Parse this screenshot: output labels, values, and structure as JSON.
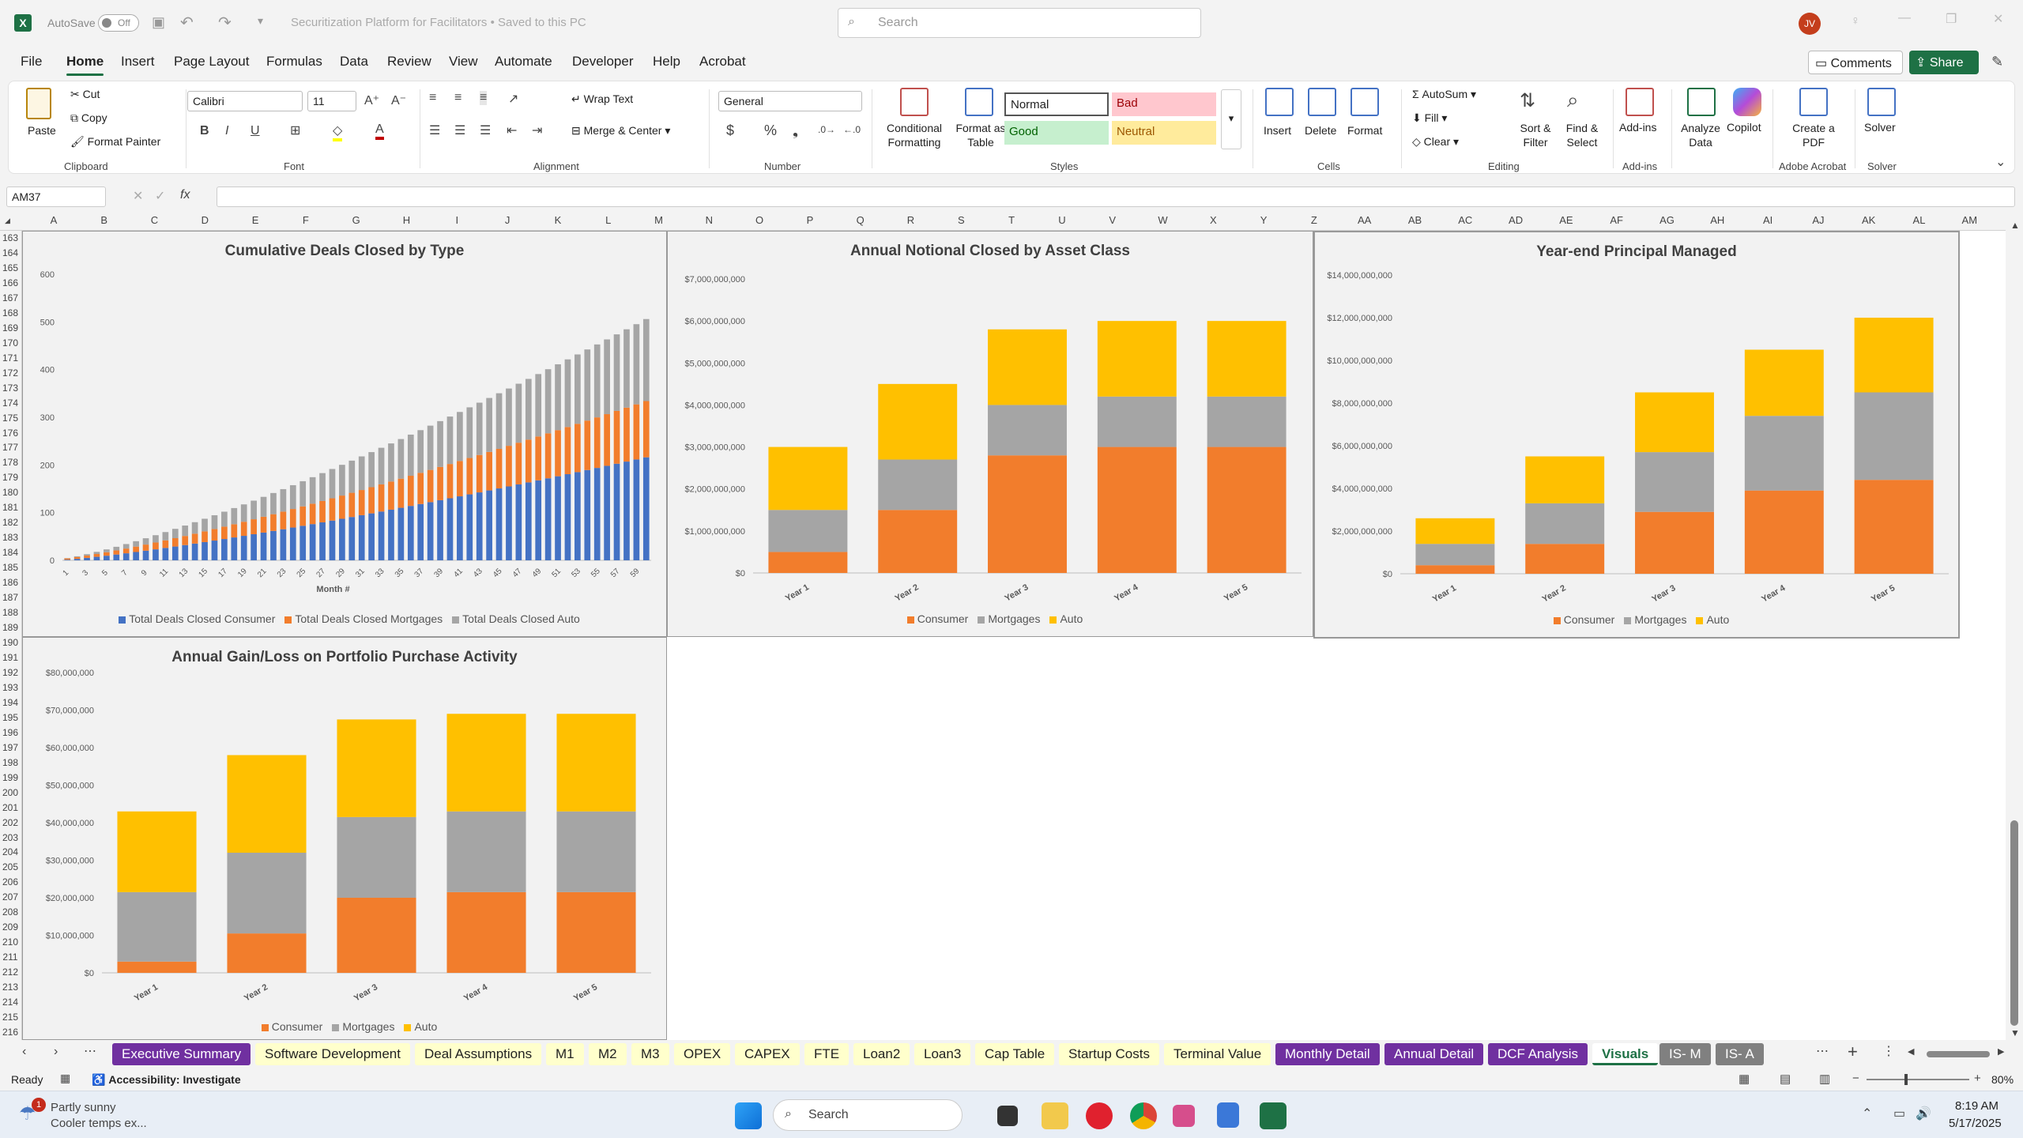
{
  "titlebar": {
    "autosave_label": "AutoSave",
    "autosave_state": "Off",
    "doc_title": "Securitization Platform for Facilitators • Saved to this PC",
    "search_placeholder": "Search",
    "user_initials": "JV"
  },
  "menu": [
    "File",
    "Home",
    "Insert",
    "Page Layout",
    "Formulas",
    "Data",
    "Review",
    "View",
    "Automate",
    "Developer",
    "Help",
    "Acrobat"
  ],
  "menu_active": "Home",
  "comments_label": "Comments",
  "share_label": "Share",
  "ribbon": {
    "clipboard": {
      "paste": "Paste",
      "cut": "Cut",
      "copy": "Copy",
      "format_painter": "Format Painter",
      "label": "Clipboard"
    },
    "font": {
      "name": "Calibri",
      "size": "11",
      "label": "Font"
    },
    "alignment": {
      "wrap": "Wrap Text",
      "merge": "Merge & Center",
      "label": "Alignment"
    },
    "number": {
      "format": "General",
      "label": "Number"
    },
    "styles": {
      "conditional": "Conditional Formatting",
      "format_table": "Format as Table",
      "normal": "Normal",
      "bad": "Bad",
      "good": "Good",
      "neutral": "Neutral",
      "label": "Styles"
    },
    "cells": {
      "insert": "Insert",
      "delete": "Delete",
      "format": "Format",
      "label": "Cells"
    },
    "editing": {
      "autosum": "AutoSum",
      "fill": "Fill",
      "clear": "Clear",
      "sort": "Sort & Filter",
      "find": "Find & Select",
      "label": "Editing"
    },
    "addins": {
      "addins": "Add-ins",
      "label": "Add-ins"
    },
    "analyze": "Analyze Data",
    "copilot": "Copilot",
    "acrobat": {
      "create": "Create a PDF",
      "label": "Adobe Acrobat"
    },
    "solver": {
      "solver": "Solver",
      "label": "Solver"
    }
  },
  "namebox": "AM37",
  "columns": [
    "A",
    "B",
    "C",
    "D",
    "E",
    "F",
    "G",
    "H",
    "I",
    "J",
    "K",
    "L",
    "M",
    "N",
    "O",
    "P",
    "Q",
    "R",
    "S",
    "T",
    "U",
    "V",
    "W",
    "X",
    "Y",
    "Z",
    "AA",
    "AB",
    "AC",
    "AD",
    "AE",
    "AF",
    "AG",
    "AH",
    "AI",
    "AJ",
    "AK",
    "AL",
    "AM"
  ],
  "row_start": 163,
  "row_end": 216,
  "sheet_tabs": [
    {
      "label": "Executive Summary",
      "color": "#7030a0",
      "text": "#ffffff"
    },
    {
      "label": "Software Development",
      "color": "#ffffcc",
      "text": "#222222"
    },
    {
      "label": "Deal Assumptions",
      "color": "#ffffcc",
      "text": "#222222"
    },
    {
      "label": "M1",
      "color": "#ffffcc",
      "text": "#222222"
    },
    {
      "label": "M2",
      "color": "#ffffcc",
      "text": "#222222"
    },
    {
      "label": "M3",
      "color": "#ffffcc",
      "text": "#222222"
    },
    {
      "label": "OPEX",
      "color": "#ffffcc",
      "text": "#222222"
    },
    {
      "label": "CAPEX",
      "color": "#ffffcc",
      "text": "#222222"
    },
    {
      "label": "FTE",
      "color": "#ffffcc",
      "text": "#222222"
    },
    {
      "label": "Loan2",
      "color": "#ffffcc",
      "text": "#222222"
    },
    {
      "label": "Loan3",
      "color": "#ffffcc",
      "text": "#222222"
    },
    {
      "label": "Cap Table",
      "color": "#ffffcc",
      "text": "#222222"
    },
    {
      "label": "Startup Costs",
      "color": "#ffffcc",
      "text": "#222222"
    },
    {
      "label": "Terminal Value",
      "color": "#ffffcc",
      "text": "#222222"
    },
    {
      "label": "Monthly Detail",
      "color": "#7030a0",
      "text": "#ffffff"
    },
    {
      "label": "Annual Detail",
      "color": "#7030a0",
      "text": "#ffffff"
    },
    {
      "label": "DCF Analysis",
      "color": "#7030a0",
      "text": "#ffffff"
    },
    {
      "label": "Visuals",
      "color": "#ffffff",
      "text": "#222222"
    },
    {
      "label": "IS- M",
      "color": "#808080",
      "text": "#ffffff"
    },
    {
      "label": "IS- A",
      "color": "#808080",
      "text": "#ffffff"
    }
  ],
  "active_sheet": "Visuals",
  "status": {
    "ready": "Ready",
    "accessibility": "Accessibility: Investigate",
    "zoom": "80%"
  },
  "taskbar": {
    "weather_title": "Partly sunny",
    "weather_sub": "Cooler temps ex...",
    "search": "Search",
    "time": "8:19 AM",
    "date": "5/17/2025",
    "badge": "1"
  },
  "colors": {
    "consumer": "#f27d2c",
    "mortgages": "#a5a5a5",
    "auto": "#ffc000",
    "blue": "#4472c4",
    "excel_green": "#1e7145"
  },
  "chart_data": [
    {
      "type": "bar",
      "stacked": true,
      "title": "Cumulative Deals Closed by Type",
      "xlabel": "Month #",
      "ylabel": "",
      "ylim": [
        0,
        600
      ],
      "yticks": [
        0,
        100,
        200,
        300,
        400,
        500,
        600
      ],
      "x_tick_labels": [
        "1",
        "3",
        "5",
        "7",
        "9",
        "11",
        "13",
        "15",
        "17",
        "19",
        "21",
        "23",
        "25",
        "27",
        "29",
        "31",
        "33",
        "35",
        "37",
        "39",
        "41",
        "43",
        "45",
        "47",
        "49",
        "51",
        "53",
        "55",
        "57",
        "59"
      ],
      "months": 60,
      "series": [
        {
          "name": "Total Deals Closed Consumer",
          "color": "#4472c4",
          "start": 0,
          "end": 216,
          "curve": 1.25
        },
        {
          "name": "Total Deals Closed Mortgages",
          "color": "#f27d2c",
          "start": 2,
          "end": 118,
          "curve": 1.25
        },
        {
          "name": "Total Deals Closed Auto",
          "color": "#a5a5a5",
          "start": 0,
          "end": 172,
          "curve": 1.35
        }
      ],
      "legend_position": "bottom"
    },
    {
      "type": "bar",
      "stacked": true,
      "title": "Annual Notional Closed by Asset Class",
      "categories": [
        "Year 1",
        "Year 2",
        "Year 3",
        "Year 4",
        "Year 5"
      ],
      "ylim": [
        0,
        7000000000
      ],
      "yticks": [
        "$0",
        "$1,000,000,000",
        "$2,000,000,000",
        "$3,000,000,000",
        "$4,000,000,000",
        "$5,000,000,000",
        "$6,000,000,000",
        "$7,000,000,000"
      ],
      "series": [
        {
          "name": "Consumer",
          "values": [
            500000000,
            1500000000,
            2800000000,
            3000000000,
            3000000000
          ]
        },
        {
          "name": "Mortgages",
          "values": [
            1000000000,
            1200000000,
            1200000000,
            1200000000,
            1200000000
          ]
        },
        {
          "name": "Auto",
          "values": [
            1500000000,
            1800000000,
            1800000000,
            1800000000,
            1800000000
          ]
        }
      ],
      "legend_position": "bottom"
    },
    {
      "type": "bar",
      "stacked": true,
      "title": "Year-end Principal Managed",
      "categories": [
        "Year 1",
        "Year 2",
        "Year 3",
        "Year 4",
        "Year 5"
      ],
      "ylim": [
        0,
        14000000000
      ],
      "yticks": [
        "$0",
        "$2,000,000,000",
        "$4,000,000,000",
        "$6,000,000,000",
        "$8,000,000,000",
        "$10,000,000,000",
        "$12,000,000,000",
        "$14,000,000,000"
      ],
      "series": [
        {
          "name": "Consumer",
          "values": [
            400000000,
            1400000000,
            2900000000,
            3900000000,
            4400000000
          ]
        },
        {
          "name": "Mortgages",
          "values": [
            1000000000,
            1900000000,
            2800000000,
            3500000000,
            4100000000
          ]
        },
        {
          "name": "Auto",
          "values": [
            1200000000,
            2200000000,
            2800000000,
            3100000000,
            3500000000
          ]
        }
      ],
      "legend_position": "bottom"
    },
    {
      "type": "bar",
      "stacked": true,
      "title": "Annual Gain/Loss on Portfolio Purchase Activity",
      "categories": [
        "Year 1",
        "Year 2",
        "Year 3",
        "Year 4",
        "Year 5"
      ],
      "ylim": [
        0,
        80000000
      ],
      "yticks": [
        "$0",
        "$10,000,000",
        "$20,000,000",
        "$30,000,000",
        "$40,000,000",
        "$50,000,000",
        "$60,000,000",
        "$70,000,000",
        "$80,000,000"
      ],
      "series": [
        {
          "name": "Consumer",
          "values": [
            3000000,
            10500000,
            20000000,
            21500000,
            21500000
          ]
        },
        {
          "name": "Mortgages",
          "values": [
            18500000,
            21500000,
            21500000,
            21500000,
            21500000
          ]
        },
        {
          "name": "Auto",
          "values": [
            21500000,
            26000000,
            26000000,
            26000000,
            26000000
          ]
        }
      ],
      "legend_position": "bottom"
    }
  ]
}
